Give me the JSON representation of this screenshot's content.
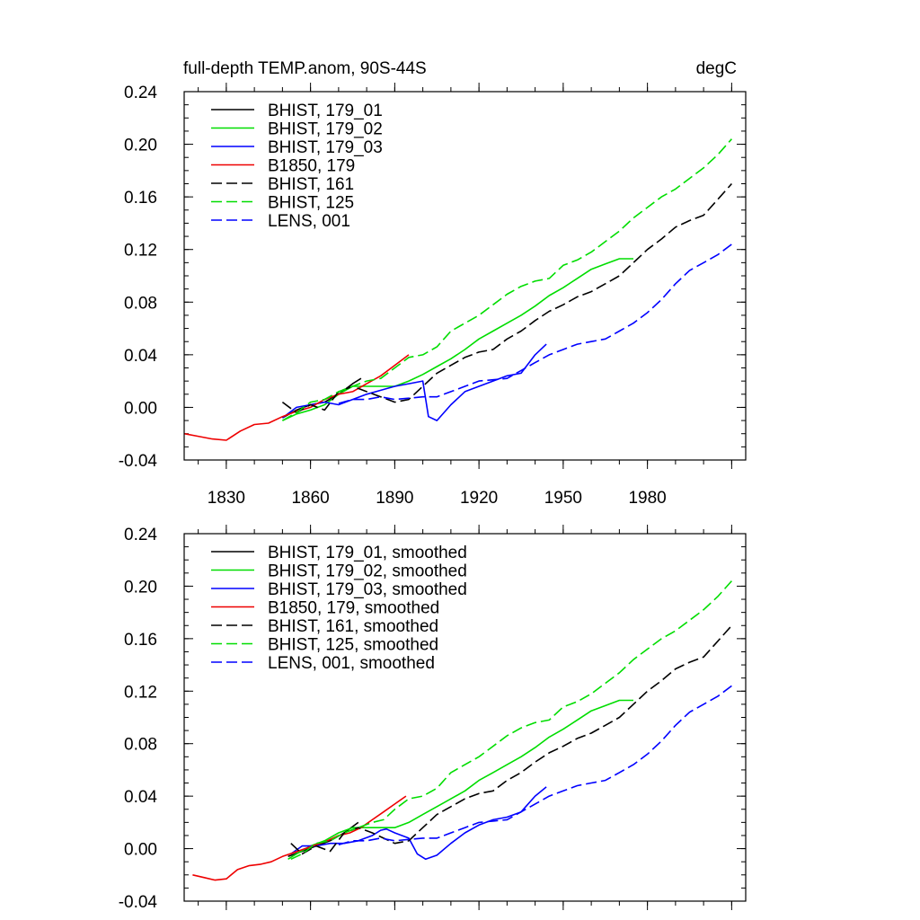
{
  "chart_data": [
    {
      "type": "line",
      "title": "full-depth TEMP.anom, 90S-44S",
      "units": "degC",
      "xlim": [
        1815,
        2015
      ],
      "ylim": [
        -0.04,
        0.24
      ],
      "yticks": [
        "-0.04",
        "0.00",
        "0.04",
        "0.08",
        "0.12",
        "0.16",
        "0.20",
        "0.24"
      ],
      "xticks": [
        "1830",
        "1860",
        "1890",
        "1920",
        "1950",
        "1980"
      ],
      "legend_position": "top-left",
      "series": [
        {
          "name": "BHIST, 179_01",
          "color": "#000000",
          "dash": "solid",
          "x": [
            1850,
            1855,
            1860,
            1865,
            1870,
            1875,
            1878
          ],
          "y": [
            -0.008,
            -0.002,
            0.002,
            0.004,
            0.01,
            0.018,
            0.022
          ]
        },
        {
          "name": "BHIST, 179_02",
          "color": "#00dd00",
          "dash": "solid",
          "x": [
            1850,
            1855,
            1860,
            1865,
            1870,
            1875,
            1880,
            1885,
            1890,
            1895,
            1900,
            1905,
            1910,
            1915,
            1920,
            1925,
            1930,
            1935,
            1940,
            1945,
            1950,
            1955,
            1960,
            1965,
            1970,
            1975
          ],
          "y": [
            -0.01,
            -0.005,
            -0.002,
            0.002,
            0.01,
            0.016,
            0.016,
            0.016,
            0.016,
            0.02,
            0.025,
            0.031,
            0.037,
            0.044,
            0.052,
            0.058,
            0.064,
            0.07,
            0.077,
            0.085,
            0.091,
            0.098,
            0.105,
            0.109,
            0.113,
            0.113
          ]
        },
        {
          "name": "BHIST, 179_03",
          "color": "#0000ff",
          "dash": "solid",
          "x": [
            1850,
            1855,
            1860,
            1865,
            1870,
            1875,
            1880,
            1885,
            1890,
            1895,
            1900,
            1902,
            1905,
            1910,
            1915,
            1920,
            1925,
            1930,
            1935,
            1940,
            1944
          ],
          "y": [
            -0.008,
            0.0,
            0.002,
            0.004,
            0.002,
            0.006,
            0.01,
            0.013,
            0.016,
            0.018,
            0.02,
            -0.007,
            -0.01,
            0.002,
            0.012,
            0.016,
            0.02,
            0.024,
            0.026,
            0.04,
            0.048
          ]
        },
        {
          "name": "B1850, 179",
          "color": "#ee0000",
          "dash": "solid",
          "x": [
            1815,
            1820,
            1825,
            1830,
            1835,
            1840,
            1845,
            1850,
            1855,
            1860,
            1865,
            1870,
            1875,
            1880,
            1885,
            1890,
            1895
          ],
          "y": [
            -0.02,
            -0.022,
            -0.024,
            -0.025,
            -0.018,
            -0.013,
            -0.012,
            -0.007,
            -0.003,
            0.0,
            0.006,
            0.01,
            0.012,
            0.018,
            0.024,
            0.032,
            0.04
          ]
        },
        {
          "name": "BHIST, 161",
          "color": "#000000",
          "dash": "dashed",
          "x": [
            1850,
            1855,
            1860,
            1865,
            1870,
            1875,
            1880,
            1885,
            1890,
            1895,
            1900,
            1905,
            1910,
            1915,
            1920,
            1925,
            1930,
            1935,
            1940,
            1945,
            1950,
            1955,
            1960,
            1965,
            1970,
            1975,
            1980,
            1985,
            1990,
            1995,
            2000,
            2005,
            2010
          ],
          "y": [
            0.004,
            -0.004,
            0.002,
            -0.002,
            0.012,
            0.016,
            0.012,
            0.008,
            0.004,
            0.006,
            0.016,
            0.026,
            0.032,
            0.038,
            0.042,
            0.044,
            0.052,
            0.058,
            0.066,
            0.073,
            0.078,
            0.084,
            0.088,
            0.094,
            0.1,
            0.11,
            0.12,
            0.128,
            0.137,
            0.142,
            0.146,
            0.158,
            0.17
          ]
        },
        {
          "name": "BHIST, 125",
          "color": "#00dd00",
          "dash": "dashed",
          "x": [
            1850,
            1855,
            1860,
            1865,
            1870,
            1875,
            1880,
            1885,
            1890,
            1895,
            1900,
            1905,
            1910,
            1915,
            1920,
            1925,
            1930,
            1935,
            1940,
            1945,
            1950,
            1955,
            1960,
            1965,
            1970,
            1975,
            1980,
            1985,
            1990,
            1995,
            2000,
            2005,
            2010
          ],
          "y": [
            -0.01,
            -0.004,
            0.004,
            0.006,
            0.012,
            0.016,
            0.02,
            0.022,
            0.03,
            0.038,
            0.04,
            0.046,
            0.058,
            0.064,
            0.07,
            0.078,
            0.086,
            0.092,
            0.096,
            0.098,
            0.108,
            0.112,
            0.118,
            0.126,
            0.134,
            0.144,
            0.152,
            0.16,
            0.166,
            0.174,
            0.182,
            0.192,
            0.204
          ]
        },
        {
          "name": "LENS, 001",
          "color": "#0000ff",
          "dash": "dashed",
          "x": [
            1870,
            1875,
            1880,
            1885,
            1890,
            1895,
            1900,
            1905,
            1910,
            1915,
            1920,
            1925,
            1930,
            1935,
            1940,
            1945,
            1950,
            1955,
            1960,
            1965,
            1970,
            1975,
            1980,
            1985,
            1990,
            1995,
            2000,
            2005,
            2010
          ],
          "y": [
            0.003,
            0.006,
            0.006,
            0.008,
            0.006,
            0.007,
            0.008,
            0.008,
            0.012,
            0.016,
            0.02,
            0.021,
            0.022,
            0.028,
            0.034,
            0.04,
            0.044,
            0.048,
            0.05,
            0.052,
            0.058,
            0.064,
            0.072,
            0.082,
            0.094,
            0.104,
            0.11,
            0.116,
            0.124
          ]
        }
      ]
    },
    {
      "type": "line",
      "title": "",
      "xlim": [
        1815,
        2015
      ],
      "ylim": [
        -0.04,
        0.24
      ],
      "yticks": [
        "-0.04",
        "0.00",
        "0.04",
        "0.08",
        "0.12",
        "0.16",
        "0.20",
        "0.24"
      ],
      "legend_position": "top-left",
      "series": [
        {
          "name": "BHIST, 179_01, smoothed",
          "color": "#000000",
          "dash": "solid",
          "x": [
            1852,
            1857,
            1862,
            1867,
            1872,
            1877
          ],
          "y": [
            -0.006,
            -0.002,
            0.002,
            0.006,
            0.012,
            0.02
          ]
        },
        {
          "name": "BHIST, 179_02, smoothed",
          "color": "#00dd00",
          "dash": "solid",
          "x": [
            1852,
            1855,
            1860,
            1865,
            1870,
            1875,
            1880,
            1885,
            1890,
            1895,
            1900,
            1905,
            1910,
            1915,
            1920,
            1925,
            1930,
            1935,
            1940,
            1945,
            1950,
            1955,
            1960,
            1965,
            1970,
            1975
          ],
          "y": [
            -0.008,
            -0.004,
            0.002,
            0.006,
            0.012,
            0.016,
            0.016,
            0.016,
            0.016,
            0.02,
            0.026,
            0.032,
            0.038,
            0.044,
            0.052,
            0.058,
            0.064,
            0.07,
            0.077,
            0.085,
            0.091,
            0.098,
            0.105,
            0.109,
            0.113,
            0.113
          ]
        },
        {
          "name": "BHIST, 179_03, smoothed",
          "color": "#0000ff",
          "dash": "solid",
          "x": [
            1853,
            1857,
            1862,
            1867,
            1872,
            1877,
            1882,
            1885,
            1887,
            1890,
            1895,
            1898,
            1901,
            1905,
            1910,
            1915,
            1920,
            1925,
            1930,
            1935,
            1940,
            1944
          ],
          "y": [
            -0.004,
            0.002,
            0.002,
            0.004,
            0.004,
            0.006,
            0.01,
            0.014,
            0.015,
            0.012,
            0.008,
            -0.004,
            -0.008,
            -0.005,
            0.004,
            0.012,
            0.018,
            0.022,
            0.024,
            0.028,
            0.04,
            0.047
          ]
        },
        {
          "name": "B1850, 179, smoothed",
          "color": "#ee0000",
          "dash": "solid",
          "x": [
            1818,
            1822,
            1826,
            1830,
            1834,
            1838,
            1842,
            1846,
            1850,
            1854,
            1858,
            1862,
            1866,
            1870,
            1874,
            1878,
            1882,
            1886,
            1890,
            1894
          ],
          "y": [
            -0.02,
            -0.022,
            -0.024,
            -0.023,
            -0.016,
            -0.013,
            -0.012,
            -0.01,
            -0.006,
            -0.003,
            0.0,
            0.003,
            0.006,
            0.01,
            0.012,
            0.016,
            0.022,
            0.028,
            0.034,
            0.04
          ]
        },
        {
          "name": "BHIST, 161, smoothed",
          "color": "#000000",
          "dash": "dashed",
          "x": [
            1853,
            1857,
            1862,
            1867,
            1872,
            1877,
            1882,
            1886,
            1890,
            1895,
            1900,
            1905,
            1910,
            1915,
            1920,
            1925,
            1930,
            1935,
            1940,
            1945,
            1950,
            1955,
            1960,
            1965,
            1970,
            1975,
            1980,
            1985,
            1990,
            1995,
            2000,
            2005,
            2010
          ],
          "y": [
            0.004,
            -0.004,
            0.002,
            -0.002,
            0.012,
            0.016,
            0.012,
            0.008,
            0.004,
            0.006,
            0.016,
            0.026,
            0.032,
            0.038,
            0.042,
            0.044,
            0.052,
            0.058,
            0.066,
            0.073,
            0.078,
            0.084,
            0.088,
            0.094,
            0.1,
            0.11,
            0.12,
            0.128,
            0.137,
            0.142,
            0.146,
            0.158,
            0.17
          ]
        },
        {
          "name": "BHIST, 125, smoothed",
          "color": "#00dd00",
          "dash": "dashed",
          "x": [
            1853,
            1857,
            1862,
            1867,
            1872,
            1877,
            1882,
            1886,
            1890,
            1895,
            1900,
            1905,
            1910,
            1915,
            1920,
            1925,
            1930,
            1935,
            1940,
            1945,
            1950,
            1955,
            1960,
            1965,
            1970,
            1975,
            1980,
            1985,
            1990,
            1995,
            2000,
            2005,
            2010
          ],
          "y": [
            -0.008,
            -0.004,
            0.004,
            0.006,
            0.012,
            0.016,
            0.02,
            0.022,
            0.03,
            0.038,
            0.04,
            0.046,
            0.058,
            0.064,
            0.07,
            0.078,
            0.086,
            0.092,
            0.096,
            0.098,
            0.108,
            0.112,
            0.118,
            0.126,
            0.134,
            0.144,
            0.152,
            0.16,
            0.166,
            0.174,
            0.182,
            0.192,
            0.204
          ]
        },
        {
          "name": "LENS, 001, smoothed",
          "color": "#0000ff",
          "dash": "dashed",
          "x": [
            1870,
            1875,
            1880,
            1885,
            1890,
            1895,
            1900,
            1905,
            1910,
            1915,
            1920,
            1925,
            1930,
            1935,
            1940,
            1945,
            1950,
            1955,
            1960,
            1965,
            1970,
            1975,
            1980,
            1985,
            1990,
            1995,
            2000,
            2005,
            2010
          ],
          "y": [
            0.003,
            0.006,
            0.006,
            0.008,
            0.006,
            0.007,
            0.008,
            0.008,
            0.012,
            0.016,
            0.02,
            0.021,
            0.022,
            0.028,
            0.034,
            0.04,
            0.044,
            0.048,
            0.05,
            0.052,
            0.058,
            0.064,
            0.072,
            0.082,
            0.094,
            0.104,
            0.11,
            0.116,
            0.124
          ]
        }
      ]
    }
  ]
}
